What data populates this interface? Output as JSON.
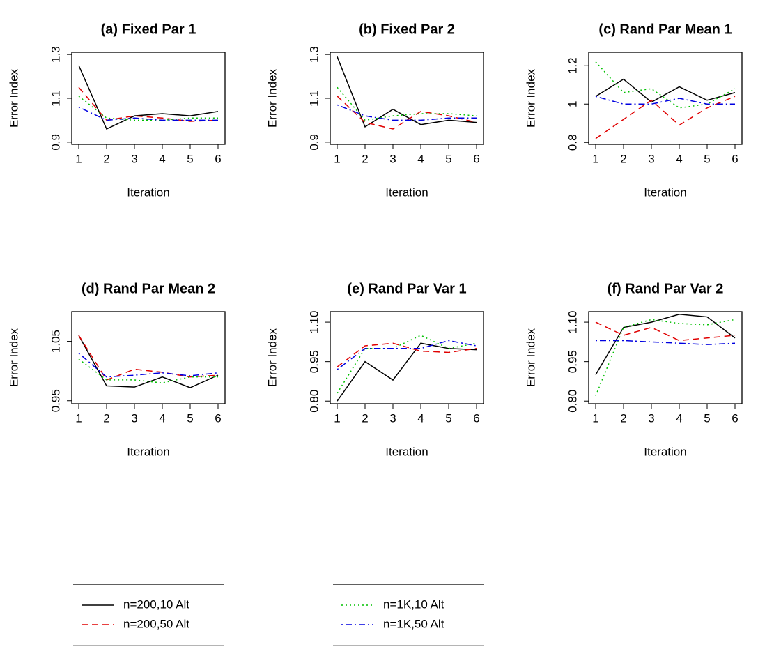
{
  "chart_data": [
    {
      "type": "line",
      "title": "(a) Fixed Par 1",
      "x_label": "Iteration",
      "y_label": "Error Index",
      "x": [
        1,
        2,
        3,
        4,
        5,
        6
      ],
      "xlim": [
        0.75,
        6.25
      ],
      "xticks": [
        1,
        2,
        3,
        4,
        5,
        6
      ],
      "ylim": [
        0.89,
        1.31
      ],
      "yticks": [
        0.9,
        1.1,
        1.3
      ],
      "series": [
        {
          "name": "n=200,10 Alt",
          "color": "#000000",
          "linestyle": "solid",
          "values": [
            1.25,
            0.96,
            1.02,
            1.03,
            1.02,
            1.04
          ]
        },
        {
          "name": "n=200,50 Alt",
          "color": "#e00000",
          "linestyle": "dashed",
          "values": [
            1.15,
            1.0,
            1.02,
            1.01,
            0.995,
            1.0
          ]
        },
        {
          "name": "n=1K,10 Alt",
          "color": "#00c000",
          "linestyle": "dotted",
          "values": [
            1.11,
            1.01,
            1.0,
            1.0,
            1.01,
            1.01
          ]
        },
        {
          "name": "n=1K,50 Alt",
          "color": "#0000e0",
          "linestyle": "dashdot",
          "values": [
            1.06,
            1.0,
            1.01,
            1.0,
            1.0,
            1.0
          ]
        }
      ]
    },
    {
      "type": "line",
      "title": "(b) Fixed Par 2",
      "x_label": "Iteration",
      "y_label": "Error Index",
      "x": [
        1,
        2,
        3,
        4,
        5,
        6
      ],
      "xlim": [
        0.75,
        6.25
      ],
      "xticks": [
        1,
        2,
        3,
        4,
        5,
        6
      ],
      "ylim": [
        0.89,
        1.31
      ],
      "yticks": [
        0.9,
        1.1,
        1.3
      ],
      "series": [
        {
          "name": "n=200,10 Alt",
          "color": "#000000",
          "linestyle": "solid",
          "values": [
            1.29,
            0.97,
            1.05,
            0.98,
            1.0,
            0.99
          ]
        },
        {
          "name": "n=200,50 Alt",
          "color": "#e00000",
          "linestyle": "dashed",
          "values": [
            1.11,
            0.99,
            0.96,
            1.04,
            1.02,
            0.99
          ]
        },
        {
          "name": "n=1K,10 Alt",
          "color": "#00c000",
          "linestyle": "dotted",
          "values": [
            1.15,
            1.0,
            1.02,
            1.03,
            1.03,
            1.02
          ]
        },
        {
          "name": "n=1K,50 Alt",
          "color": "#0000e0",
          "linestyle": "dashdot",
          "values": [
            1.07,
            1.02,
            1.0,
            1.0,
            1.01,
            1.01
          ]
        }
      ]
    },
    {
      "type": "line",
      "title": "(c) Rand Par Mean 1",
      "x_label": "Iteration",
      "y_label": "Error Index",
      "x": [
        1,
        2,
        3,
        4,
        5,
        6
      ],
      "xlim": [
        0.75,
        6.25
      ],
      "xticks": [
        1,
        2,
        3,
        4,
        5,
        6
      ],
      "ylim": [
        0.79,
        1.27
      ],
      "yticks": [
        0.8,
        1.0,
        1.2
      ],
      "series": [
        {
          "name": "n=200,10 Alt",
          "color": "#000000",
          "linestyle": "solid",
          "values": [
            1.04,
            1.13,
            1.01,
            1.09,
            1.02,
            1.06
          ]
        },
        {
          "name": "n=200,50 Alt",
          "color": "#e00000",
          "linestyle": "dashed",
          "values": [
            0.82,
            0.92,
            1.02,
            0.89,
            0.98,
            1.04
          ]
        },
        {
          "name": "n=1K,10 Alt",
          "color": "#00c000",
          "linestyle": "dotted",
          "values": [
            1.22,
            1.06,
            1.08,
            0.98,
            1.0,
            1.08
          ]
        },
        {
          "name": "n=1K,50 Alt",
          "color": "#0000e0",
          "linestyle": "dashdot",
          "values": [
            1.04,
            1.0,
            1.0,
            1.03,
            1.0,
            1.0
          ]
        }
      ]
    },
    {
      "type": "line",
      "title": "(d) Rand Par Mean 2",
      "x_label": "Iteration",
      "y_label": "Error Index",
      "x": [
        1,
        2,
        3,
        4,
        5,
        6
      ],
      "xlim": [
        0.75,
        6.25
      ],
      "xticks": [
        1,
        2,
        3,
        4,
        5,
        6
      ],
      "ylim": [
        0.945,
        1.1
      ],
      "yticks": [
        0.95,
        1.05
      ],
      "series": [
        {
          "name": "n=200,10 Alt",
          "color": "#000000",
          "linestyle": "solid",
          "values": [
            1.06,
            0.975,
            0.973,
            0.99,
            0.972,
            0.993
          ]
        },
        {
          "name": "n=200,50 Alt",
          "color": "#e00000",
          "linestyle": "dashed",
          "values": [
            1.06,
            0.985,
            1.003,
            0.998,
            0.99,
            0.993
          ]
        },
        {
          "name": "n=1K,10 Alt",
          "color": "#00c000",
          "linestyle": "dotted",
          "values": [
            1.02,
            0.985,
            0.985,
            0.98,
            0.99,
            0.99
          ]
        },
        {
          "name": "n=1K,50 Alt",
          "color": "#0000e0",
          "linestyle": "dashdot",
          "values": [
            1.03,
            0.99,
            0.993,
            0.997,
            0.992,
            0.997
          ]
        }
      ]
    },
    {
      "type": "line",
      "title": "(e) Rand Par Var 1",
      "x_label": "Iteration",
      "y_label": "Error Index",
      "x": [
        1,
        2,
        3,
        4,
        5,
        6
      ],
      "xlim": [
        0.75,
        6.25
      ],
      "xticks": [
        1,
        2,
        3,
        4,
        5,
        6
      ],
      "ylim": [
        0.79,
        1.14
      ],
      "yticks": [
        {
          "value": 0.8,
          "label": "0.80"
        },
        0.95,
        {
          "value": 1.1,
          "label": "1.10"
        }
      ],
      "series": [
        {
          "name": "n=200,10 Alt",
          "color": "#000000",
          "linestyle": "solid",
          "values": [
            0.8,
            0.95,
            0.88,
            1.02,
            1.0,
            0.995
          ]
        },
        {
          "name": "n=200,50 Alt",
          "color": "#e00000",
          "linestyle": "dashed",
          "values": [
            0.93,
            1.01,
            1.02,
            0.99,
            0.985,
            1.0
          ]
        },
        {
          "name": "n=1K,10 Alt",
          "color": "#00c000",
          "linestyle": "dotted",
          "values": [
            0.83,
            1.0,
            1.0,
            1.05,
            1.0,
            1.02
          ]
        },
        {
          "name": "n=1K,50 Alt",
          "color": "#0000e0",
          "linestyle": "dashdot",
          "values": [
            0.92,
            1.0,
            1.0,
            1.0,
            1.03,
            1.01
          ]
        }
      ]
    },
    {
      "type": "line",
      "title": "(f) Rand Par Var 2",
      "x_label": "Iteration",
      "y_label": "Error Index",
      "x": [
        1,
        2,
        3,
        4,
        5,
        6
      ],
      "xlim": [
        0.75,
        6.25
      ],
      "xticks": [
        1,
        2,
        3,
        4,
        5,
        6
      ],
      "ylim": [
        0.79,
        1.14
      ],
      "yticks": [
        {
          "value": 0.8,
          "label": "0.80"
        },
        0.95,
        {
          "value": 1.1,
          "label": "1.10"
        }
      ],
      "series": [
        {
          "name": "n=200,10 Alt",
          "color": "#000000",
          "linestyle": "solid",
          "values": [
            0.9,
            1.08,
            1.1,
            1.13,
            1.12,
            1.04
          ]
        },
        {
          "name": "n=200,50 Alt",
          "color": "#e00000",
          "linestyle": "dashed",
          "values": [
            1.1,
            1.05,
            1.08,
            1.03,
            1.04,
            1.05
          ]
        },
        {
          "name": "n=1K,10 Alt",
          "color": "#00c000",
          "linestyle": "dotted",
          "values": [
            0.82,
            1.08,
            1.11,
            1.095,
            1.09,
            1.11
          ]
        },
        {
          "name": "n=1K,50 Alt",
          "color": "#0000e0",
          "linestyle": "dashdot",
          "values": [
            1.03,
            1.03,
            1.025,
            1.02,
            1.015,
            1.02
          ]
        }
      ]
    }
  ]
}
